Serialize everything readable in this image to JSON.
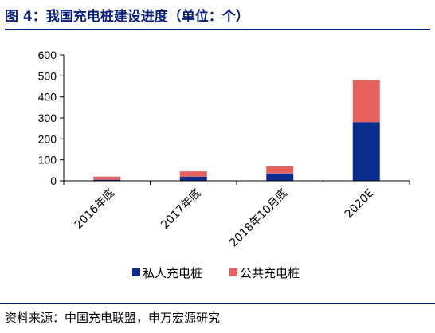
{
  "figure": {
    "title": "图 4：我国充电桩建设进度（单位：个）",
    "source": "资料来源：中国充电联盟，申万宏源研究"
  },
  "colors": {
    "title": "#0a1f7a",
    "private": "#0b2c8f",
    "public": "#e5615d",
    "axis": "#000000"
  },
  "chart_data": {
    "type": "bar",
    "stacked": true,
    "categories": [
      "2016年底",
      "2017年底",
      "2018年10月底",
      "2020E"
    ],
    "series": [
      {
        "name": "私人充电桩",
        "values": [
          5,
          20,
          35,
          280
        ],
        "color": "#0b2c8f"
      },
      {
        "name": "公共充电桩",
        "values": [
          15,
          25,
          35,
          200
        ],
        "color": "#e5615d"
      }
    ],
    "title": "",
    "xlabel": "",
    "ylabel": "",
    "ylim": [
      0,
      600
    ],
    "yticks": [
      0,
      100,
      200,
      300,
      400,
      500,
      600
    ],
    "grid": false,
    "legend_position": "bottom-center"
  }
}
